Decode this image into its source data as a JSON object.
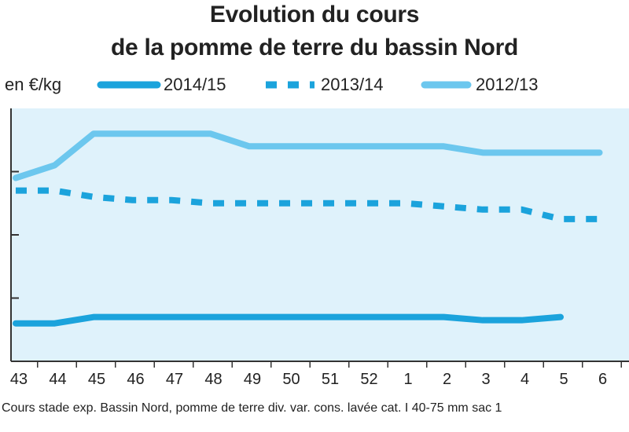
{
  "chart_data": {
    "type": "line",
    "title": [
      "Evolution du cours",
      "de la pomme de terre du bassin Nord"
    ],
    "ylabel": "en €/kg",
    "categories": [
      "43",
      "44",
      "45",
      "46",
      "47",
      "48",
      "49",
      "50",
      "51",
      "52",
      "1",
      "2",
      "3",
      "4",
      "5",
      "6"
    ],
    "series": [
      {
        "name": "2014/15",
        "style": "solid",
        "color": "#1ba3dc",
        "values": [
          0.06,
          0.06,
          0.07,
          0.07,
          0.07,
          0.07,
          0.07,
          0.07,
          0.07,
          0.07,
          0.07,
          0.07,
          0.065,
          0.065,
          0.07,
          null
        ]
      },
      {
        "name": "2013/14",
        "style": "dashed",
        "color": "#1ba3dc",
        "values": [
          0.27,
          0.27,
          0.26,
          0.255,
          0.255,
          0.25,
          0.25,
          0.25,
          0.25,
          0.25,
          0.25,
          0.245,
          0.24,
          0.24,
          0.225,
          0.225
        ]
      },
      {
        "name": "2012/13",
        "style": "solid",
        "color": "#6cc7ee",
        "values": [
          0.29,
          0.31,
          0.36,
          0.36,
          0.36,
          0.36,
          0.34,
          0.34,
          0.34,
          0.34,
          0.34,
          0.34,
          0.33,
          0.33,
          0.33,
          0.33
        ]
      }
    ],
    "ylim": [
      0,
      0.4
    ],
    "grid": false,
    "legend": "top",
    "source": "Cours stade exp. Bassin Nord, pomme de terre div. var. cons. lavée cat. I 40-75 mm sac 1"
  },
  "colors": {
    "plot_bg": "#dff2fb",
    "axis": "#333333"
  }
}
